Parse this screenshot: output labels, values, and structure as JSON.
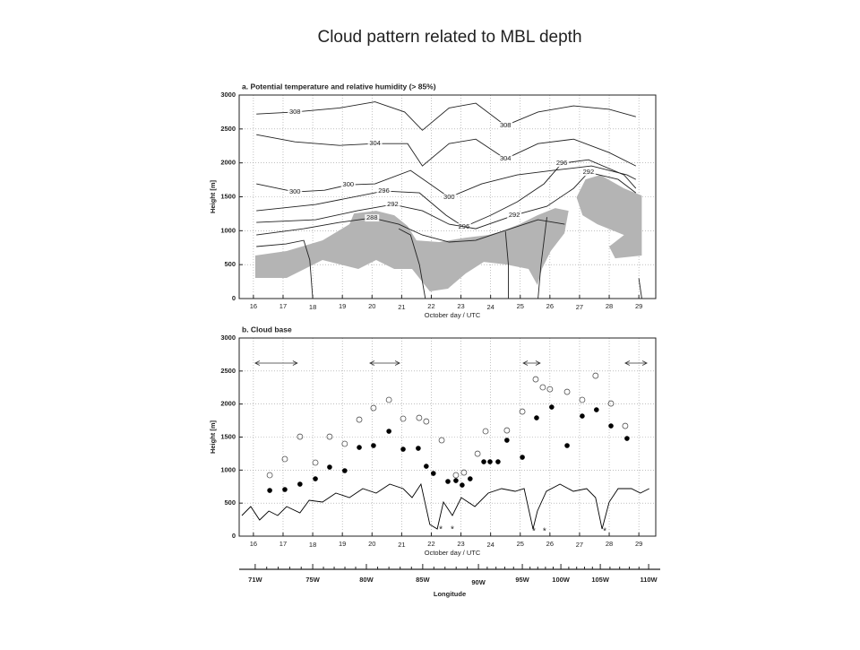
{
  "title": "Cloud pattern related to MBL depth",
  "chart_data": [
    {
      "type": "contour",
      "title": "a. Potential temperature and relative humidity (> 85%)",
      "xlabel": "October day / UTC",
      "ylabel": "Height [m]",
      "xlim": [
        15.52,
        29.57
      ],
      "ylim": [
        0,
        3000
      ],
      "xticks": [
        16,
        17,
        18,
        19,
        20,
        21,
        22,
        23,
        24,
        25,
        26,
        27,
        28,
        29
      ],
      "yticks": [
        0,
        500,
        1000,
        1500,
        2000,
        2500,
        3000
      ],
      "grid": true,
      "line_color": "#222222",
      "shaded_color": "#b4b4b4",
      "shaded": [
        {
          "x": [
            16.06,
            17.12,
            18.33,
            19.24,
            19.39,
            20.14,
            20.75,
            21.2,
            21.5,
            22.26,
            23.16,
            23.92,
            24.37,
            24.97,
            25.58,
            26.18,
            26.63,
            26.49,
            26.03,
            25.73,
            25.58,
            25.28,
            24.52,
            23.77,
            23.16,
            22.56,
            21.95,
            21.35,
            20.75,
            20.14,
            19.54,
            18.93,
            18.33,
            17.12,
            16.06
          ],
          "y": [
            634,
            700,
            858,
            1096,
            1254,
            1294,
            1228,
            1069,
            858,
            832,
            898,
            937,
            990,
            1096,
            1228,
            1333,
            1294,
            964,
            700,
            436,
            198,
            436,
            502,
            541,
            370,
            145,
            106,
            436,
            436,
            568,
            436,
            502,
            568,
            304,
            304
          ]
        },
        {
          "x": [
            27.2,
            27.7,
            28.5,
            29.1,
            29.1,
            28.2,
            28.0,
            28.5,
            27.6,
            27.1,
            26.9
          ],
          "y": [
            1756,
            1822,
            1624,
            1518,
            634,
            594,
            766,
            937,
            1096,
            1228,
            1492
          ]
        }
      ],
      "contours": [
        {
          "level": 308,
          "x": [
            16.1,
            17.4,
            18.9,
            20.1,
            21.1,
            21.7,
            22.6,
            23.5,
            24.5,
            25.6,
            26.8,
            28,
            28.9
          ],
          "y": [
            2720,
            2750,
            2810,
            2900,
            2750,
            2480,
            2810,
            2880,
            2550,
            2750,
            2840,
            2790,
            2680
          ]
        },
        {
          "level": 304,
          "x": [
            16.1,
            17.4,
            18.9,
            20.1,
            21.2,
            21.7,
            22.6,
            23.5,
            24.5,
            25.6,
            26.8,
            28,
            28.9
          ],
          "y": [
            2416,
            2310,
            2257,
            2284,
            2284,
            1954,
            2284,
            2350,
            2059,
            2284,
            2350,
            2152,
            1954
          ]
        },
        {
          "level": 300,
          "x": [
            16.1,
            17.4,
            18.4,
            19.2,
            20.1,
            21.3,
            22.6,
            23.7,
            24.9,
            26.1,
            27.4,
            28.6,
            28.9
          ],
          "y": [
            1690,
            1571,
            1597,
            1676,
            1690,
            1888,
            1492,
            1690,
            1822,
            1888,
            1954,
            1822,
            1756
          ]
        },
        {
          "level": 296,
          "x": [
            16.1,
            18.1,
            20.4,
            21.6,
            22.5,
            23.1,
            24.0,
            24.9,
            25.8,
            26.4,
            27.3,
            28.5,
            28.9
          ],
          "y": [
            1294,
            1386,
            1584,
            1558,
            1228,
            1056,
            1228,
            1426,
            1690,
            1993,
            2046,
            1822,
            1624
          ]
        },
        {
          "level": 292,
          "x": [
            16.1,
            18.1,
            19.5,
            20.7,
            21.7,
            22.6,
            23.5,
            24.8,
            25.9,
            26.8,
            27.3,
            28.3,
            28.9
          ],
          "y": [
            1122,
            1162,
            1294,
            1386,
            1294,
            1096,
            1030,
            1228,
            1360,
            1624,
            1861,
            1756,
            1558
          ]
        },
        {
          "level": 288,
          "x": [
            16.1,
            17.7,
            18.9,
            20.0,
            20.9,
            21.7,
            22.6,
            23.5,
            24.4,
            25.6,
            26.5
          ],
          "y": [
            937,
            1030,
            1122,
            1188,
            1096,
            937,
            832,
            858,
            990,
            1162,
            1096
          ]
        },
        {
          "x": [
            16.1,
            17.1,
            17.7,
            17.9,
            18.0
          ],
          "y": [
            766,
            805,
            858,
            568,
            0
          ]
        },
        {
          "x": [
            20.9,
            21.3,
            21.6,
            21.8
          ],
          "y": [
            1030,
            937,
            500,
            0
          ]
        },
        {
          "x": [
            24.5,
            24.6,
            24.6
          ],
          "y": [
            990,
            500,
            0
          ]
        },
        {
          "x": [
            25.9,
            25.7,
            25.6
          ],
          "y": [
            1200,
            500,
            0
          ]
        },
        {
          "x": [
            29.0,
            29.1
          ],
          "y": [
            300,
            0
          ]
        }
      ]
    },
    {
      "type": "scatter",
      "title": "b. Cloud base",
      "xlabel": "October day / UTC",
      "ylabel": "Height [m]",
      "xlim": [
        15.52,
        29.57
      ],
      "ylim": [
        0,
        3000
      ],
      "xticks": [
        16,
        17,
        18,
        19,
        20,
        21,
        22,
        23,
        24,
        25,
        26,
        27,
        28,
        29
      ],
      "yticks": [
        0,
        500,
        1000,
        1500,
        2000,
        2500,
        3000
      ],
      "grid": true,
      "series": [
        {
          "marker": "open",
          "color": "#555555",
          "x": [
            16.55,
            17.06,
            17.57,
            18.09,
            18.57,
            19.08,
            19.57,
            20.05,
            20.57,
            21.05,
            21.59,
            21.83,
            22.35,
            22.83,
            23.1,
            23.56,
            23.83,
            24.55,
            25.07,
            25.52,
            25.76,
            26.0,
            26.58,
            27.09,
            27.54,
            28.06,
            28.54
          ],
          "values": [
            923,
            1167,
            1506,
            1113,
            1506,
            1398,
            1764,
            1940,
            2063,
            1778,
            1791,
            1737,
            1452,
            923,
            963,
            1248,
            1588,
            1601,
            1886,
            2375,
            2253,
            2225,
            2185,
            2063,
            2429,
            2008,
            1669
          ]
        },
        {
          "marker": "filled",
          "color": "#000000",
          "x": [
            16.55,
            17.06,
            17.57,
            18.09,
            18.57,
            19.08,
            19.57,
            20.05,
            20.57,
            21.05,
            21.56,
            21.83,
            22.07,
            22.56,
            22.83,
            23.04,
            23.31,
            23.77,
            23.98,
            24.25,
            24.55,
            25.07,
            25.55,
            26.06,
            26.58,
            27.09,
            27.57,
            28.06,
            28.6
          ],
          "values": [
            692,
            706,
            787,
            868,
            1045,
            991,
            1343,
            1371,
            1588,
            1316,
            1330,
            1058,
            950,
            828,
            841,
            773,
            868,
            1126,
            1126,
            1126,
            1452,
            1194,
            1791,
            1954,
            1371,
            1818,
            1913,
            1669,
            1479
          ]
        }
      ],
      "line": {
        "color": "#000000",
        "x": [
          15.61,
          15.91,
          16.21,
          16.52,
          16.82,
          17.12,
          17.57,
          17.88,
          18.33,
          18.78,
          19.24,
          19.69,
          20.14,
          20.6,
          21.05,
          21.35,
          21.65,
          21.95,
          22.2,
          22.41,
          22.71,
          23.01,
          23.47,
          23.92,
          24.37,
          24.83,
          25.13,
          25.43,
          25.58,
          25.88,
          26.34,
          26.79,
          27.24,
          27.54,
          27.76,
          28.0,
          28.3,
          28.75,
          29.05,
          29.35
        ],
        "values": [
          312,
          448,
          244,
          380,
          312,
          448,
          353,
          543,
          516,
          651,
          584,
          719,
          651,
          787,
          719,
          584,
          787,
          176,
          109,
          516,
          312,
          584,
          448,
          651,
          719,
          679,
          719,
          109,
          380,
          679,
          787,
          679,
          719,
          584,
          109,
          516,
          719,
          719,
          651,
          719
        ]
      },
      "asterisks": {
        "marker": "*",
        "x": [
          22.32,
          22.71,
          25.46,
          25.82,
          27.85
        ],
        "values": [
          122,
          122,
          95,
          95,
          95
        ]
      },
      "arrows": {
        "x_start": [
          16.06,
          19.93,
          25.1,
          28.54
        ],
        "x_end": [
          17.48,
          20.93,
          25.67,
          29.27
        ],
        "values": [
          2620,
          2620,
          2620,
          2620
        ]
      }
    },
    {
      "type": "axis",
      "xlabel": "Longitude",
      "xlim": [
        15.52,
        29.57
      ],
      "xticks": [
        {
          "value": 16.06,
          "label": "71W"
        },
        {
          "value": 18.0,
          "label": "75W"
        },
        {
          "value": 19.81,
          "label": "80W"
        },
        {
          "value": 21.71,
          "label": "85W"
        },
        {
          "value": 23.59,
          "label": "90W"
        },
        {
          "value": 25.07,
          "label": "95W"
        },
        {
          "value": 26.37,
          "label": "100W"
        },
        {
          "value": 27.7,
          "label": "105W"
        },
        {
          "value": 29.33,
          "label": "110W"
        }
      ]
    }
  ]
}
